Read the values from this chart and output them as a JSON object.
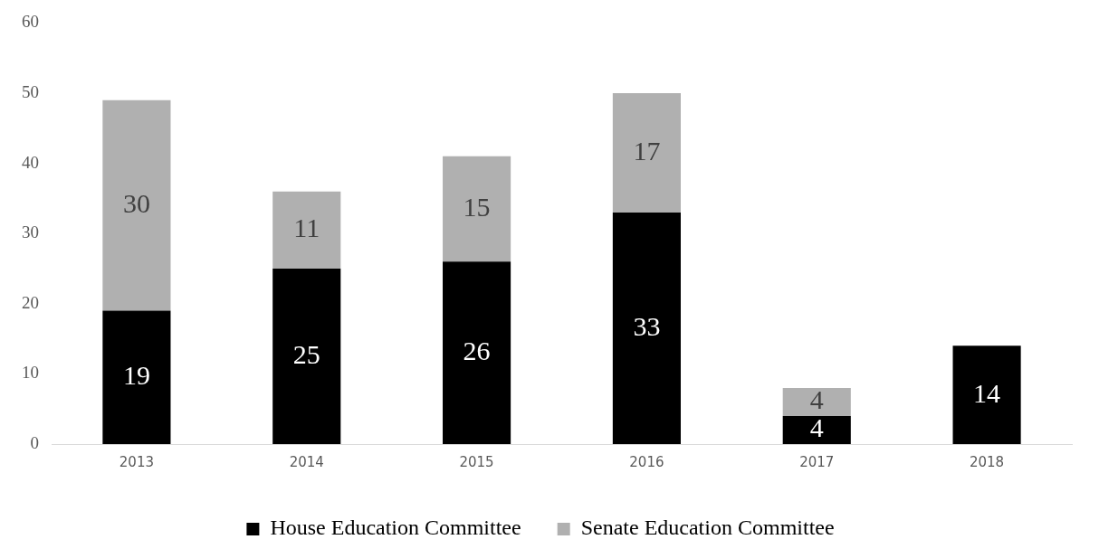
{
  "chart_data": {
    "type": "bar",
    "stacked": true,
    "categories": [
      "2013",
      "2014",
      "2015",
      "2016",
      "2017",
      "2018"
    ],
    "series": [
      {
        "name": "House Education Committee",
        "color": "#000000",
        "values": [
          19,
          25,
          26,
          33,
          4,
          14
        ]
      },
      {
        "name": "Senate Education Committee",
        "color": "#b0b0b0",
        "values": [
          30,
          11,
          15,
          17,
          4,
          null
        ]
      }
    ],
    "ylim": [
      0,
      60
    ],
    "yticks": [
      0,
      10,
      20,
      30,
      40,
      50,
      60
    ],
    "grid": false,
    "legend": "bottom",
    "data_labels": true
  }
}
